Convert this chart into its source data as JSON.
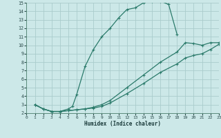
{
  "xlabel": "Humidex (Indice chaleur)",
  "bg_color": "#cce8e8",
  "grid_color": "#aacccc",
  "line_color": "#2a7a6a",
  "xlim": [
    0,
    23
  ],
  "ylim": [
    2,
    15
  ],
  "xticks": [
    0,
    1,
    2,
    3,
    4,
    5,
    6,
    7,
    8,
    9,
    10,
    11,
    12,
    13,
    14,
    15,
    16,
    17,
    18,
    19,
    20,
    21,
    22,
    23
  ],
  "yticks": [
    2,
    3,
    4,
    5,
    6,
    7,
    8,
    9,
    10,
    11,
    12,
    13,
    14,
    15
  ],
  "line1_x": [
    1,
    2,
    3,
    4,
    5,
    5.5,
    6,
    7,
    8,
    9,
    10,
    11,
    12,
    13,
    14,
    15,
    16,
    17,
    18
  ],
  "line1_y": [
    3.0,
    2.5,
    2.2,
    2.2,
    2.5,
    2.8,
    4.2,
    7.5,
    9.5,
    11.0,
    12.0,
    13.2,
    14.2,
    14.4,
    15.0,
    15.2,
    15.2,
    14.8,
    11.3
  ],
  "line2_x": [
    1,
    2,
    3,
    4,
    5,
    6,
    7,
    8,
    9,
    10,
    12,
    14,
    16,
    18,
    19,
    20,
    21,
    22,
    23
  ],
  "line2_y": [
    3.0,
    2.5,
    2.2,
    2.2,
    2.3,
    2.4,
    2.5,
    2.7,
    3.0,
    3.5,
    5.0,
    6.5,
    8.0,
    9.2,
    10.3,
    10.2,
    10.0,
    10.3,
    10.3
  ],
  "line3_x": [
    1,
    2,
    3,
    4,
    5,
    6,
    7,
    8,
    9,
    10,
    12,
    14,
    16,
    18,
    19,
    20,
    21,
    22,
    23
  ],
  "line3_y": [
    3.0,
    2.5,
    2.2,
    2.2,
    2.3,
    2.4,
    2.5,
    2.6,
    2.8,
    3.2,
    4.3,
    5.5,
    6.8,
    7.8,
    8.5,
    8.8,
    9.0,
    9.5,
    10.1
  ]
}
